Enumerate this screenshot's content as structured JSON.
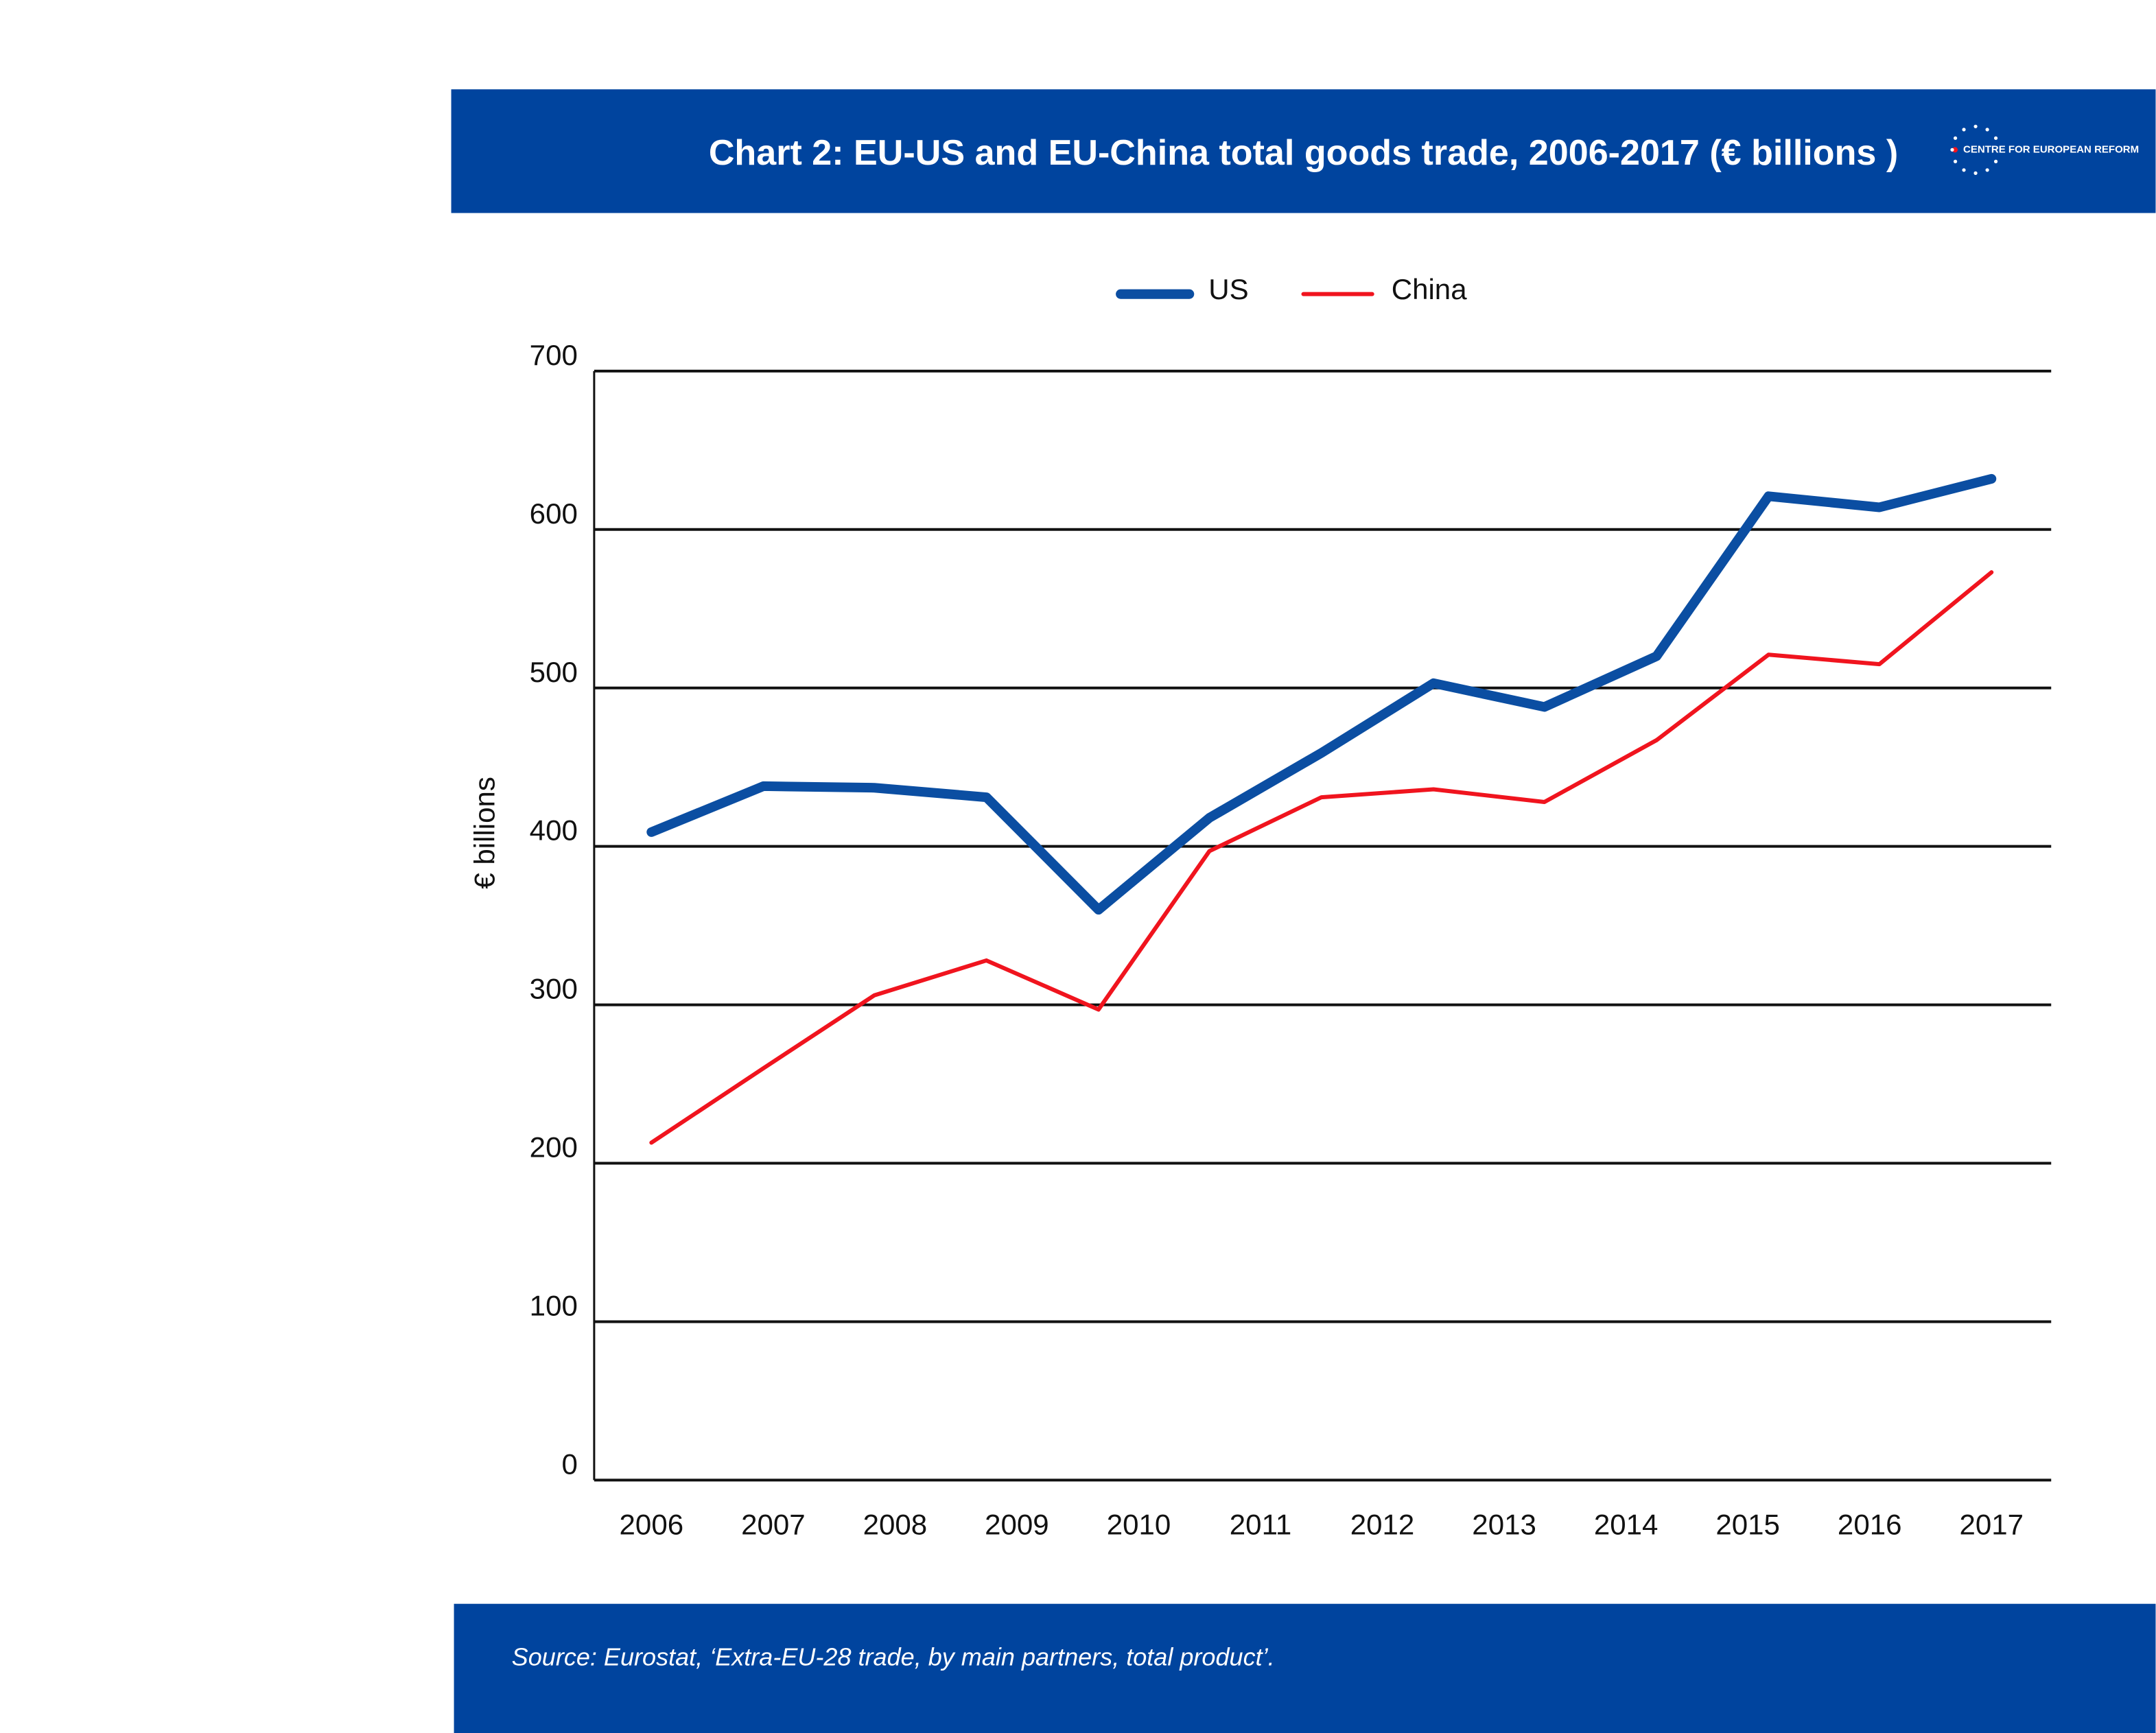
{
  "chart_data": {
    "type": "line",
    "title": "Chart 2: EU-US and EU-China total goods trade, 2006-2017 (€ billions )",
    "logo_text": "CENTRE FOR EUROPEAN REFORM",
    "y_label": "€ billions",
    "source": "Source: Eurostat, ‘Extra-EU-28 trade, by main partners, total product’.",
    "x": [
      2006,
      2006.92,
      2007.83,
      2008.75,
      2009.67,
      2010.58,
      2011.5,
      2012.42,
      2013.33,
      2014.25,
      2015.17,
      2016.08,
      2017
    ],
    "series": [
      {
        "name": "US",
        "color": "#0b4ea2",
        "width": 7,
        "values": [
          409,
          438,
          437,
          431,
          360,
          418,
          459,
          503,
          488,
          520,
          621,
          614,
          632
        ]
      },
      {
        "name": "China",
        "color": "#f0141e",
        "width": 3,
        "values": [
          213,
          260,
          306,
          328,
          297,
          397,
          431,
          436,
          428,
          467,
          521,
          515,
          573
        ]
      }
    ],
    "xlim": [
      2005.53,
      2017.49
    ],
    "xticks": [
      2006,
      2007,
      2008,
      2009,
      2010,
      2011,
      2012,
      2013,
      2014,
      2015,
      2016,
      2017
    ],
    "ylim": [
      0,
      700
    ],
    "yticks": [
      0,
      100,
      200,
      300,
      400,
      500,
      600,
      700
    ],
    "grid": true,
    "legend": "top"
  }
}
